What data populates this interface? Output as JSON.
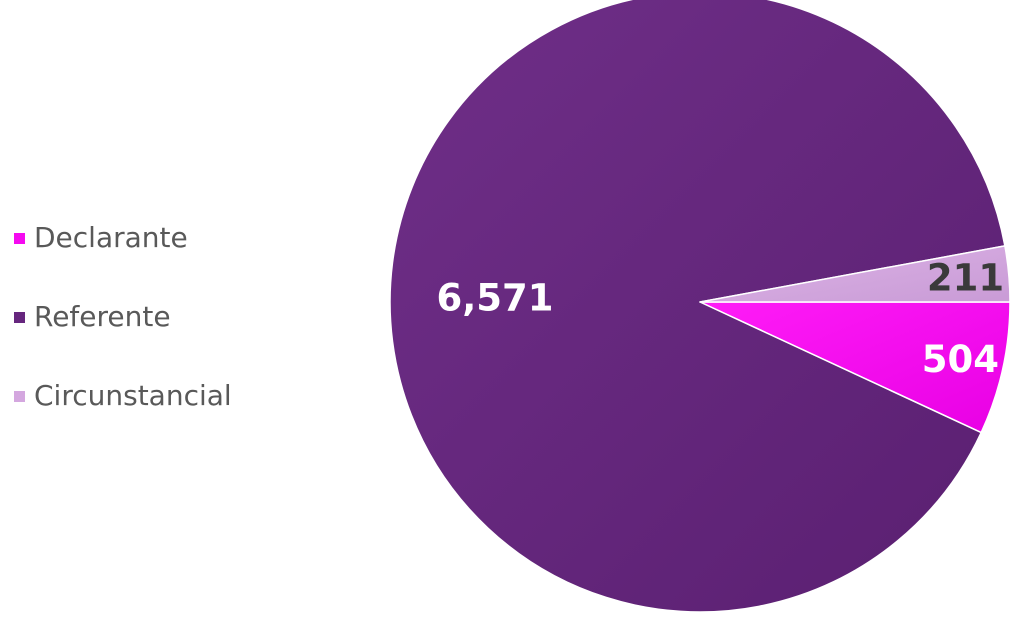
{
  "chart_data": {
    "type": "pie",
    "title": "",
    "legend_position": "left",
    "slices": [
      {
        "label": "Declarante",
        "value": 504,
        "data_label": "504",
        "color": "#f50af0",
        "label_color": "#ffffff"
      },
      {
        "label": "Referente",
        "value": 6571,
        "data_label": "6,571",
        "color": "#66267e",
        "label_color": "#ffffff"
      },
      {
        "label": "Circunstancial",
        "value": 211,
        "data_label": "211",
        "color": "#d4a7df",
        "label_color": "#3a3a3a"
      }
    ]
  }
}
